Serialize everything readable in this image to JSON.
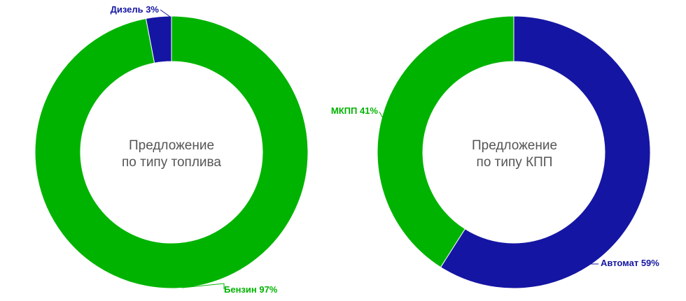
{
  "chart_data": [
    {
      "type": "pie",
      "variant": "donut",
      "title_lines": [
        "Предложение",
        "по типу топлива"
      ],
      "slices": [
        {
          "name": "Бензин",
          "value": 97,
          "label": "Бензин 97%",
          "color": "#00b300"
        },
        {
          "name": "Дизель",
          "value": 3,
          "label": "Дизель 3%",
          "color": "#1515a3"
        }
      ]
    },
    {
      "type": "pie",
      "variant": "donut",
      "title_lines": [
        "Предложение",
        "по типу КПП"
      ],
      "slices": [
        {
          "name": "Автомат",
          "value": 59,
          "label": "Автомат 59%",
          "color": "#1515a3"
        },
        {
          "name": "МКПП",
          "value": 41,
          "label": "МКПП 41%",
          "color": "#00b300"
        }
      ]
    }
  ]
}
